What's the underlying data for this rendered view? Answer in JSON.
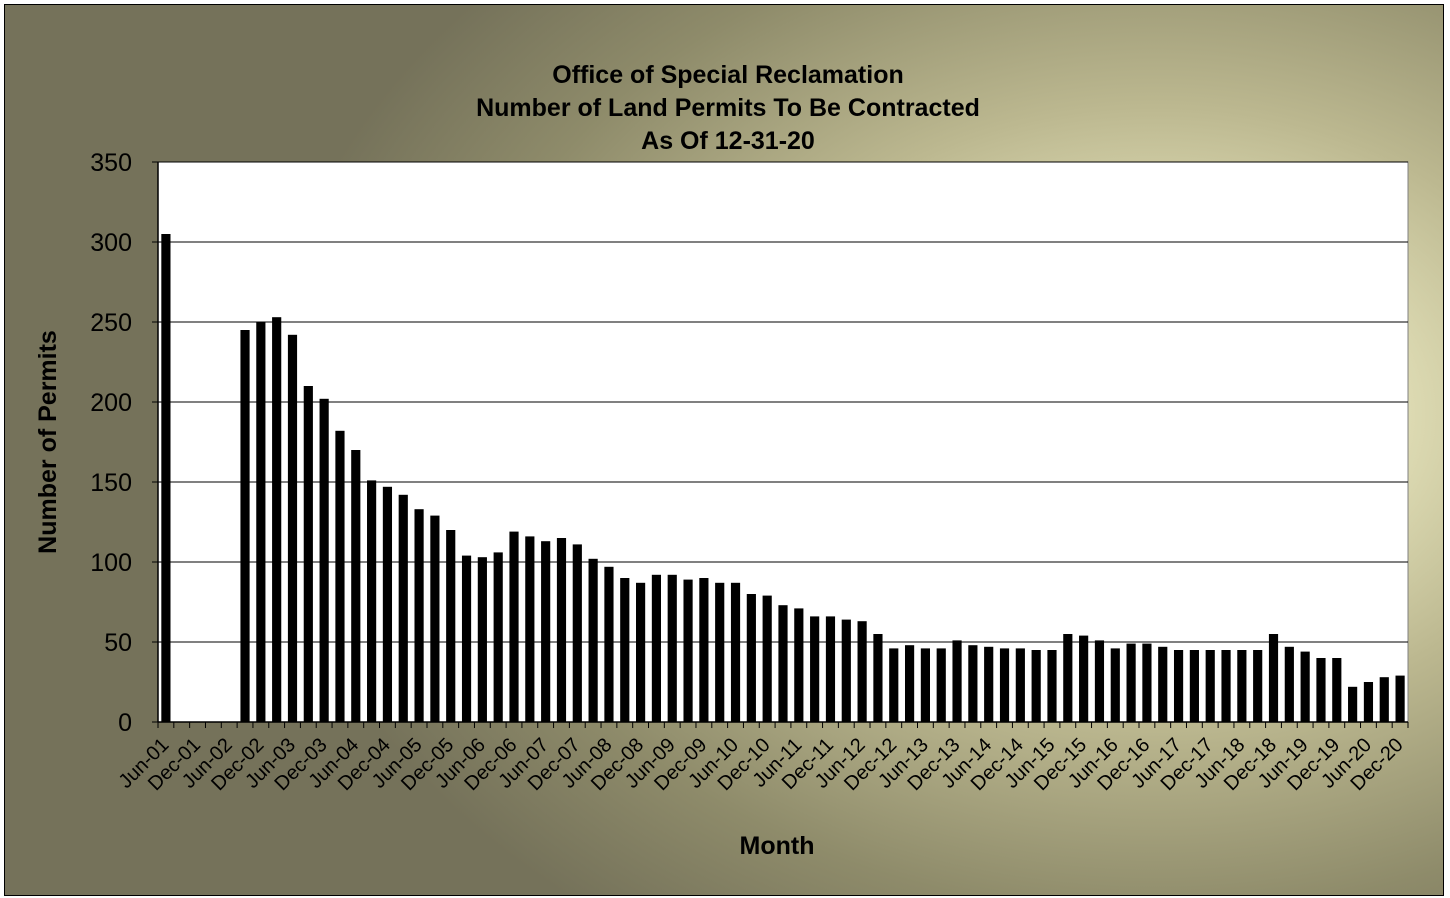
{
  "chart_data": {
    "type": "bar",
    "title": [
      "Office of Special Reclamation",
      "Number of Land Permits To Be Contracted",
      "As Of 12-31-20"
    ],
    "xlabel": "Month",
    "ylabel": "Number of Permits",
    "ylim": [
      0,
      350
    ],
    "yticks": [
      0,
      50,
      100,
      150,
      200,
      250,
      300,
      350
    ],
    "grid": true,
    "legend": "none",
    "colors": {
      "bars": "#000000",
      "plot_bg": "#ffffff",
      "grid": "#000000"
    },
    "xtick_labels": [
      "Jun-01",
      "Dec-01",
      "Jun-02",
      "Dec-02",
      "Jun-03",
      "Dec-03",
      "Jun-04",
      "Dec-04",
      "Jun-05",
      "Dec-05",
      "Jun-06",
      "Dec-06",
      "Jun-07",
      "Dec-07",
      "Jun-08",
      "Dec-08",
      "Jun-09",
      "Dec-09",
      "Jun-10",
      "Dec-10",
      "Jun-11",
      "Dec-11",
      "Jun-12",
      "Dec-12",
      "Jun-13",
      "Dec-13",
      "Jun-14",
      "Dec-14",
      "Jun-15",
      "Dec-15",
      "Jun-16",
      "Dec-16",
      "Jun-17",
      "Dec-17",
      "Jun-18",
      "Dec-18",
      "Jun-19",
      "Dec-19",
      "Jun-20",
      "Dec-20"
    ],
    "categories": [
      "Jun-01",
      "Sep-01",
      "Dec-01",
      "Mar-02",
      "Jun-02",
      "Sep-02",
      "Dec-02",
      "Mar-03",
      "Jun-03",
      "Sep-03",
      "Dec-03",
      "Mar-04",
      "Jun-04",
      "Sep-04",
      "Dec-04",
      "Mar-05",
      "Jun-05",
      "Sep-05",
      "Dec-05",
      "Mar-06",
      "Jun-06",
      "Sep-06",
      "Dec-06",
      "Mar-07",
      "Jun-07",
      "Sep-07",
      "Dec-07",
      "Mar-08",
      "Jun-08",
      "Sep-08",
      "Dec-08",
      "Mar-09",
      "Jun-09",
      "Sep-09",
      "Dec-09",
      "Mar-10",
      "Jun-10",
      "Sep-10",
      "Dec-10",
      "Mar-11",
      "Jun-11",
      "Sep-11",
      "Dec-11",
      "Mar-12",
      "Jun-12",
      "Sep-12",
      "Dec-12",
      "Mar-13",
      "Jun-13",
      "Sep-13",
      "Dec-13",
      "Mar-14",
      "Jun-14",
      "Sep-14",
      "Dec-14",
      "Mar-15",
      "Jun-15",
      "Sep-15",
      "Dec-15",
      "Mar-16",
      "Jun-16",
      "Sep-16",
      "Dec-16",
      "Mar-17",
      "Jun-17",
      "Sep-17",
      "Dec-17",
      "Mar-18",
      "Jun-18",
      "Sep-18",
      "Dec-18",
      "Mar-19",
      "Jun-19",
      "Sep-19",
      "Dec-19",
      "Mar-20",
      "Jun-20",
      "Sep-20",
      "Dec-20"
    ],
    "values": [
      305,
      null,
      null,
      null,
      null,
      245,
      250,
      253,
      242,
      210,
      202,
      182,
      170,
      151,
      147,
      142,
      133,
      129,
      120,
      104,
      103,
      106,
      119,
      116,
      113,
      115,
      111,
      102,
      97,
      90,
      87,
      92,
      92,
      89,
      90,
      87,
      87,
      80,
      79,
      73,
      71,
      66,
      66,
      64,
      63,
      55,
      46,
      48,
      46,
      46,
      51,
      48,
      47,
      46,
      46,
      45,
      45,
      55,
      54,
      51,
      46,
      49,
      49,
      47,
      45,
      45,
      45,
      45,
      45,
      45,
      55,
      47,
      44,
      40,
      40,
      22,
      25,
      28,
      29
    ]
  }
}
